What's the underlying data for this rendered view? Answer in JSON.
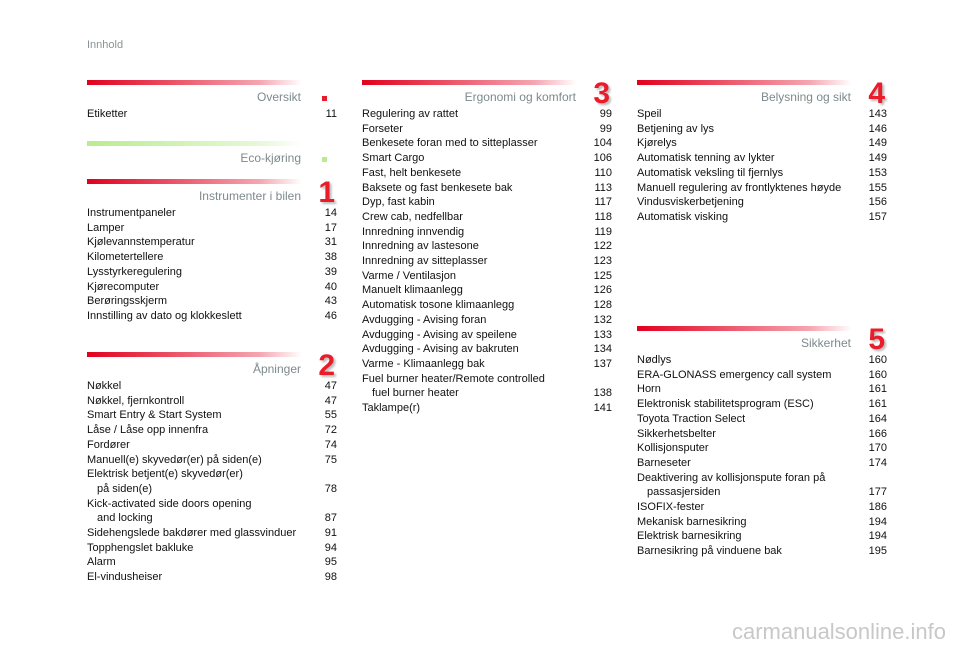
{
  "page_title": "Innhold",
  "sections": {
    "oversikt": {
      "title": "Oversikt",
      "items": [
        {
          "label": "Etiketter",
          "page": "11"
        }
      ]
    },
    "eco": {
      "title": "Eco-kjøring"
    },
    "instr": {
      "title": "Instrumenter i bilen",
      "number": "1",
      "items": [
        {
          "label": "Instrumentpaneler",
          "page": "14"
        },
        {
          "label": "Lamper",
          "page": "17"
        },
        {
          "label": "Kjølevannstemperatur",
          "page": "31"
        },
        {
          "label": "Kilometertellere",
          "page": "38"
        },
        {
          "label": "Lysstyrkeregulering",
          "page": "39"
        },
        {
          "label": "Kjørecomputer",
          "page": "40"
        },
        {
          "label": "Berøringsskjerm",
          "page": "43"
        },
        {
          "label": "Innstilling av dato og klokkeslett",
          "page": "46"
        }
      ]
    },
    "apn": {
      "title": "Åpninger",
      "number": "2",
      "items": [
        {
          "label": "Nøkkel",
          "page": "47"
        },
        {
          "label": "Nøkkel, fjernkontroll",
          "page": "47"
        },
        {
          "label": "Smart Entry & Start System",
          "page": "55"
        },
        {
          "label": "Låse / Låse opp innenfra",
          "page": "72"
        },
        {
          "label": "Fordører",
          "page": "74"
        },
        {
          "label": "Manuell(e) skyvedør(er) på siden(e)",
          "page": "75"
        },
        {
          "label": "Elektrisk betjent(e) skyvedør(er)",
          "label2": "på siden(e)",
          "page": "78"
        },
        {
          "label": "Kick-activated side doors opening",
          "label2": "and locking",
          "page": "87"
        },
        {
          "label": "Sidehengslede bakdører med glassvinduer",
          "page": "91"
        },
        {
          "label": "Topphengslet bakluke",
          "page": "94"
        },
        {
          "label": "Alarm",
          "page": "95"
        },
        {
          "label": "El-vindusheiser",
          "page": "98"
        }
      ]
    },
    "ergo": {
      "title": "Ergonomi og komfort",
      "number": "3",
      "items": [
        {
          "label": "Regulering av rattet",
          "page": "99"
        },
        {
          "label": "Forseter",
          "page": "99"
        },
        {
          "label": "Benkesete foran med to sitteplasser",
          "page": "104"
        },
        {
          "label": "Smart Cargo",
          "page": "106"
        },
        {
          "label": "Fast, helt benkesete",
          "page": "110"
        },
        {
          "label": "Baksete og fast benkesete bak",
          "page": "113"
        },
        {
          "label": "Dyp, fast kabin",
          "page": "117"
        },
        {
          "label": "Crew cab, nedfellbar",
          "page": "118"
        },
        {
          "label": "Innredning innvendig",
          "page": "119"
        },
        {
          "label": "Innredning av lastesone",
          "page": "122"
        },
        {
          "label": "Innredning av sitteplasser",
          "page": "123"
        },
        {
          "label": "Varme / Ventilasjon",
          "page": "125"
        },
        {
          "label": "Manuelt klimaanlegg",
          "page": "126"
        },
        {
          "label": "Automatisk tosone klimaanlegg",
          "page": "128"
        },
        {
          "label": "Avdugging - Avising foran",
          "page": "132"
        },
        {
          "label": "Avdugging - Avising av speilene",
          "page": "133"
        },
        {
          "label": "Avdugging - Avising av bakruten",
          "page": "134"
        },
        {
          "label": "Varme - Klimaanlegg bak",
          "page": "137"
        },
        {
          "label": "Fuel burner heater/Remote controlled",
          "label2": "fuel burner heater",
          "page": "138"
        },
        {
          "label": "Taklampe(r)",
          "page": "141"
        }
      ]
    },
    "bel": {
      "title": "Belysning og sikt",
      "number": "4",
      "items": [
        {
          "label": "Speil",
          "page": "143"
        },
        {
          "label": "Betjening av lys",
          "page": "146"
        },
        {
          "label": "Kjørelys",
          "page": "149"
        },
        {
          "label": "Automatisk tenning av lykter",
          "page": "149"
        },
        {
          "label": "Automatisk veksling til fjernlys",
          "page": "153"
        },
        {
          "label": "Manuell regulering av frontlyktenes høyde",
          "page": "155"
        },
        {
          "label": "Vindusviskerbetjening",
          "page": "156"
        },
        {
          "label": "Automatisk visking",
          "page": "157"
        }
      ]
    },
    "sik": {
      "title": "Sikkerhet",
      "number": "5",
      "items": [
        {
          "label": "Nødlys",
          "page": "160"
        },
        {
          "label": "ERA-GLONASS emergency call system",
          "page": "160"
        },
        {
          "label": "Horn",
          "page": "161"
        },
        {
          "label": "Elektronisk stabilitetsprogram (ESC)",
          "page": "161"
        },
        {
          "label": "Toyota Traction Select",
          "page": "164"
        },
        {
          "label": "Sikkerhetsbelter",
          "page": "166"
        },
        {
          "label": "Kollisjonsputer",
          "page": "170"
        },
        {
          "label": "Barneseter",
          "page": "174"
        },
        {
          "label": "Deaktivering av kollisjonspute foran på",
          "label2": "passasjersiden",
          "page": "177"
        },
        {
          "label": "ISOFIX-fester",
          "page": "186"
        },
        {
          "label": "Mekanisk barnesikring",
          "page": "194"
        },
        {
          "label": "Elektrisk barnesikring",
          "page": "194"
        },
        {
          "label": "Barnesikring på vinduene bak",
          "page": "195"
        }
      ]
    }
  },
  "colors": {
    "accent": "#ea1c2a",
    "eco": "#b9ec8f"
  },
  "watermark": "carmanualsonline.info"
}
